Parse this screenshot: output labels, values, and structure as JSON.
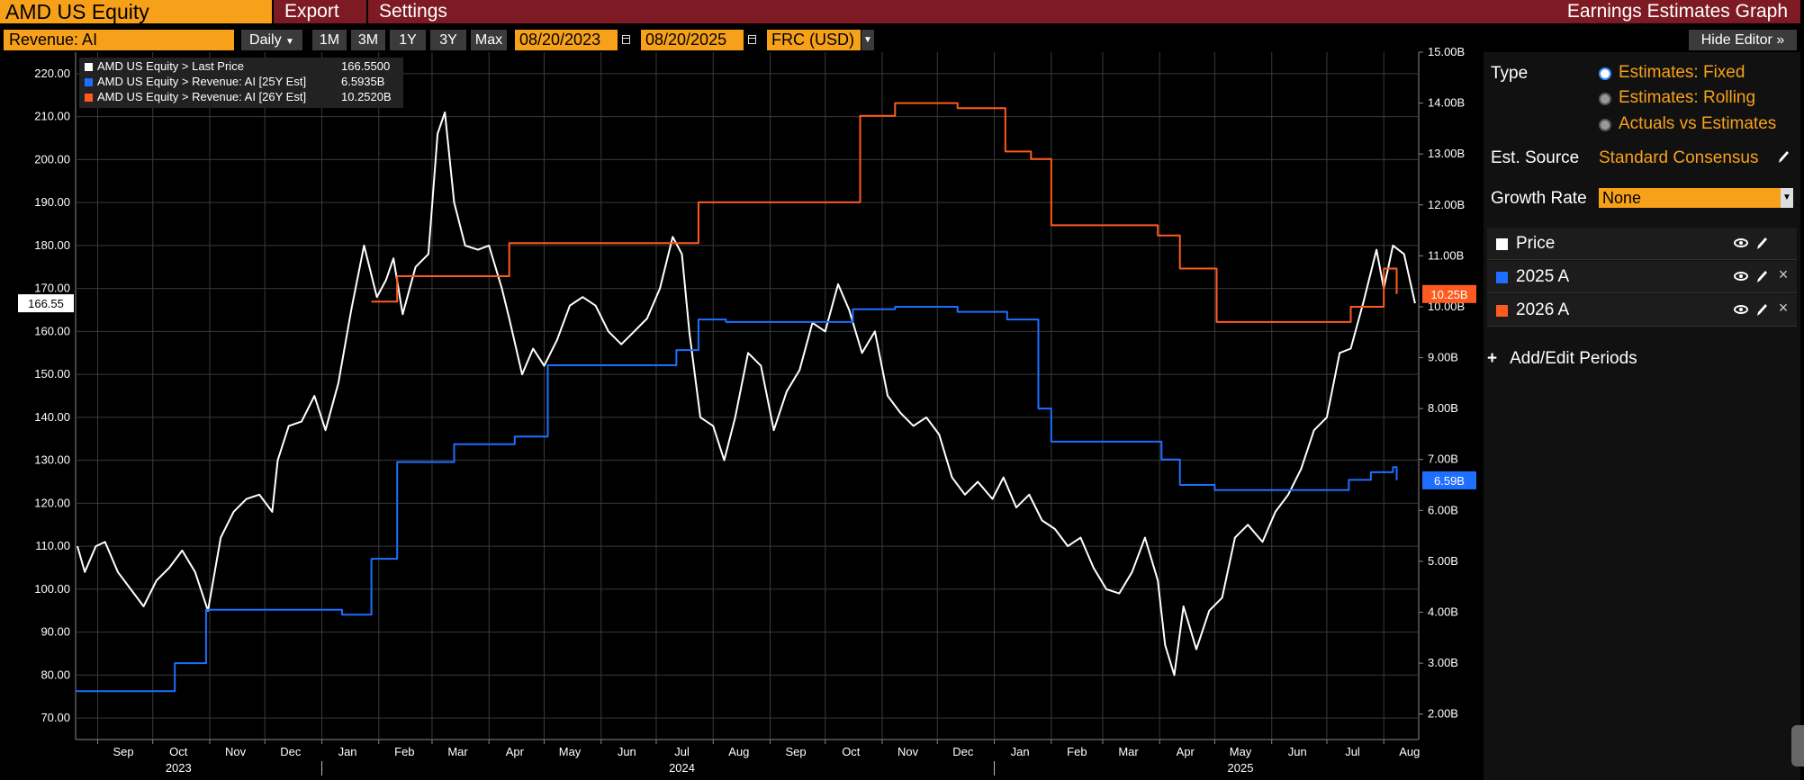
{
  "header": {
    "security": "AMD US Equity",
    "menu": [
      "Export",
      "Settings"
    ],
    "graph_title": "Earnings Estimates Graph"
  },
  "toolbar": {
    "field": "Revenue: AI",
    "frequency": "Daily",
    "ranges": [
      "1M",
      "3M",
      "1Y",
      "3Y",
      "Max"
    ],
    "start_date": "08/20/2023",
    "end_date": "08/20/2025",
    "currency": "FRC (USD)",
    "hide_editor": "Hide Editor"
  },
  "legend": [
    {
      "label": "AMD US Equity > Last Price",
      "value": "166.5500",
      "color": "#ffffff"
    },
    {
      "label": "AMD US Equity > Revenue: AI [25Y Est]",
      "value": "6.5935B",
      "color": "#1e6fff"
    },
    {
      "label": "AMD US Equity > Revenue: AI [26Y Est]",
      "value": "10.2520B",
      "color": "#ff5a1f"
    }
  ],
  "markers": {
    "price": "166.55",
    "est_2026": "10.25B",
    "est_2025": "6.59B"
  },
  "editor": {
    "type_label": "Type",
    "type_options": [
      {
        "label": "Estimates: Fixed",
        "selected": true
      },
      {
        "label": "Estimates: Rolling",
        "selected": false
      },
      {
        "label": "Actuals vs Estimates",
        "selected": false
      }
    ],
    "source_label": "Est. Source",
    "source_value": "Standard Consensus",
    "growth_label": "Growth Rate",
    "growth_value": "None",
    "series": [
      {
        "name": "Price",
        "color": "#ffffff"
      },
      {
        "name": "2025 A",
        "color": "#1e6fff"
      },
      {
        "name": "2026 A",
        "color": "#ff5a1f"
      }
    ],
    "add_periods": "Add/Edit Periods",
    "icons": [
      "eye-icon",
      "pencil-icon",
      "close-icon",
      "pencil-icon"
    ]
  },
  "chart_data": {
    "type": "line",
    "x_range": [
      "2023-08-20",
      "2025-08-20"
    ],
    "month_labels": [
      "Sep",
      "Oct",
      "Nov",
      "Dec",
      "Jan",
      "Feb",
      "Mar",
      "Apr",
      "May",
      "Jun",
      "Jul",
      "Aug",
      "Sep",
      "Oct",
      "Nov",
      "Dec",
      "Jan",
      "Feb",
      "Mar",
      "Apr",
      "May",
      "Jun",
      "Jul",
      "Aug"
    ],
    "year_labels": [
      "2023",
      "2024",
      "2025"
    ],
    "left_axis": {
      "ylim": [
        65,
        225
      ],
      "ticks": [
        "70.00",
        "80.00",
        "90.00",
        "100.00",
        "110.00",
        "120.00",
        "130.00",
        "140.00",
        "150.00",
        "160.00",
        "170.00",
        "180.00",
        "190.00",
        "200.00",
        "210.00",
        "220.00"
      ]
    },
    "right_axis": {
      "ylim": [
        1.5,
        15.0
      ],
      "ticks": [
        "2.00B",
        "3.00B",
        "4.00B",
        "5.00B",
        "6.00B",
        "7.00B",
        "8.00B",
        "9.00B",
        "10.00B",
        "11.00B",
        "12.00B",
        "13.00B",
        "14.00B",
        "15.00B"
      ]
    },
    "grid": true,
    "series": [
      {
        "name": "AMD US Equity > Last Price",
        "axis": "left",
        "color": "#ffffff",
        "points": [
          [
            "2023-08-21",
            110
          ],
          [
            "2023-08-25",
            104
          ],
          [
            "2023-08-31",
            110
          ],
          [
            "2023-09-05",
            111
          ],
          [
            "2023-09-12",
            104
          ],
          [
            "2023-09-19",
            100
          ],
          [
            "2023-09-26",
            96
          ],
          [
            "2023-10-03",
            102
          ],
          [
            "2023-10-10",
            105
          ],
          [
            "2023-10-17",
            109
          ],
          [
            "2023-10-24",
            104
          ],
          [
            "2023-10-31",
            95
          ],
          [
            "2023-11-07",
            112
          ],
          [
            "2023-11-14",
            118
          ],
          [
            "2023-11-21",
            121
          ],
          [
            "2023-11-28",
            122
          ],
          [
            "2023-12-05",
            118
          ],
          [
            "2023-12-08",
            130
          ],
          [
            "2023-12-14",
            138
          ],
          [
            "2023-12-21",
            139
          ],
          [
            "2023-12-28",
            145
          ],
          [
            "2024-01-03",
            137
          ],
          [
            "2024-01-10",
            148
          ],
          [
            "2024-01-17",
            165
          ],
          [
            "2024-01-24",
            180
          ],
          [
            "2024-01-31",
            168
          ],
          [
            "2024-02-05",
            172
          ],
          [
            "2024-02-09",
            177
          ],
          [
            "2024-02-14",
            164
          ],
          [
            "2024-02-21",
            175
          ],
          [
            "2024-02-28",
            178
          ],
          [
            "2024-03-04",
            206
          ],
          [
            "2024-03-08",
            211
          ],
          [
            "2024-03-13",
            190
          ],
          [
            "2024-03-19",
            180
          ],
          [
            "2024-03-26",
            179
          ],
          [
            "2024-04-01",
            180
          ],
          [
            "2024-04-08",
            170
          ],
          [
            "2024-04-12",
            163
          ],
          [
            "2024-04-19",
            150
          ],
          [
            "2024-04-25",
            156
          ],
          [
            "2024-05-01",
            152
          ],
          [
            "2024-05-08",
            158
          ],
          [
            "2024-05-15",
            166
          ],
          [
            "2024-05-22",
            168
          ],
          [
            "2024-05-29",
            166
          ],
          [
            "2024-06-05",
            160
          ],
          [
            "2024-06-12",
            157
          ],
          [
            "2024-06-19",
            160
          ],
          [
            "2024-06-26",
            163
          ],
          [
            "2024-07-03",
            170
          ],
          [
            "2024-07-10",
            182
          ],
          [
            "2024-07-15",
            178
          ],
          [
            "2024-07-19",
            160
          ],
          [
            "2024-07-25",
            140
          ],
          [
            "2024-08-01",
            138
          ],
          [
            "2024-08-07",
            130
          ],
          [
            "2024-08-13",
            140
          ],
          [
            "2024-08-20",
            155
          ],
          [
            "2024-08-27",
            152
          ],
          [
            "2024-09-03",
            137
          ],
          [
            "2024-09-10",
            146
          ],
          [
            "2024-09-17",
            151
          ],
          [
            "2024-09-24",
            162
          ],
          [
            "2024-10-01",
            160
          ],
          [
            "2024-10-08",
            171
          ],
          [
            "2024-10-14",
            165
          ],
          [
            "2024-10-21",
            155
          ],
          [
            "2024-10-28",
            160
          ],
          [
            "2024-11-04",
            145
          ],
          [
            "2024-11-11",
            141
          ],
          [
            "2024-11-18",
            138
          ],
          [
            "2024-11-25",
            140
          ],
          [
            "2024-12-02",
            136
          ],
          [
            "2024-12-09",
            126
          ],
          [
            "2024-12-16",
            122
          ],
          [
            "2024-12-23",
            125
          ],
          [
            "2024-12-31",
            121
          ],
          [
            "2025-01-06",
            126
          ],
          [
            "2025-01-13",
            119
          ],
          [
            "2025-01-20",
            122
          ],
          [
            "2025-01-27",
            116
          ],
          [
            "2025-02-03",
            114
          ],
          [
            "2025-02-10",
            110
          ],
          [
            "2025-02-17",
            112
          ],
          [
            "2025-02-24",
            105
          ],
          [
            "2025-03-03",
            100
          ],
          [
            "2025-03-10",
            99
          ],
          [
            "2025-03-17",
            104
          ],
          [
            "2025-03-24",
            112
          ],
          [
            "2025-03-31",
            102
          ],
          [
            "2025-04-04",
            87
          ],
          [
            "2025-04-09",
            80
          ],
          [
            "2025-04-14",
            96
          ],
          [
            "2025-04-21",
            86
          ],
          [
            "2025-04-28",
            95
          ],
          [
            "2025-05-05",
            98
          ],
          [
            "2025-05-12",
            112
          ],
          [
            "2025-05-19",
            115
          ],
          [
            "2025-05-27",
            111
          ],
          [
            "2025-06-03",
            118
          ],
          [
            "2025-06-10",
            122
          ],
          [
            "2025-06-17",
            128
          ],
          [
            "2025-06-24",
            137
          ],
          [
            "2025-07-01",
            140
          ],
          [
            "2025-07-08",
            155
          ],
          [
            "2025-07-14",
            156
          ],
          [
            "2025-07-21",
            167
          ],
          [
            "2025-07-28",
            179
          ],
          [
            "2025-08-01",
            170
          ],
          [
            "2025-08-06",
            180
          ],
          [
            "2025-08-12",
            178
          ],
          [
            "2025-08-18",
            166.55
          ]
        ]
      },
      {
        "name": "AMD US Equity > Revenue: AI [25Y Est]",
        "axis": "right",
        "color": "#1e6fff",
        "points": [
          [
            "2023-08-20",
            2.45
          ],
          [
            "2023-10-13",
            3.0
          ],
          [
            "2023-10-30",
            4.05
          ],
          [
            "2024-01-12",
            3.95
          ],
          [
            "2024-01-28",
            5.05
          ],
          [
            "2024-02-11",
            6.95
          ],
          [
            "2024-03-13",
            7.3
          ],
          [
            "2024-04-15",
            7.45
          ],
          [
            "2024-05-03",
            8.85
          ],
          [
            "2024-07-12",
            9.15
          ],
          [
            "2024-07-24",
            9.75
          ],
          [
            "2024-08-08",
            9.7
          ],
          [
            "2024-10-16",
            9.95
          ],
          [
            "2024-11-08",
            10.0
          ],
          [
            "2024-12-12",
            9.9
          ],
          [
            "2025-01-08",
            9.75
          ],
          [
            "2025-01-25",
            8.0
          ],
          [
            "2025-02-01",
            7.35
          ],
          [
            "2025-04-02",
            7.0
          ],
          [
            "2025-04-12",
            6.5
          ],
          [
            "2025-05-01",
            6.4
          ],
          [
            "2025-07-13",
            6.6
          ],
          [
            "2025-07-25",
            6.75
          ],
          [
            "2025-08-06",
            6.85
          ],
          [
            "2025-08-08",
            6.59
          ]
        ]
      },
      {
        "name": "AMD US Equity > Revenue: AI [26Y Est]",
        "axis": "right",
        "color": "#ff5a1f",
        "points": [
          [
            "2024-01-28",
            10.1
          ],
          [
            "2024-02-11",
            10.6
          ],
          [
            "2024-04-12",
            11.25
          ],
          [
            "2024-07-24",
            12.05
          ],
          [
            "2024-10-20",
            13.75
          ],
          [
            "2024-11-08",
            14.0
          ],
          [
            "2024-12-12",
            13.9
          ],
          [
            "2025-01-07",
            13.05
          ],
          [
            "2025-01-21",
            12.9
          ],
          [
            "2025-02-01",
            11.6
          ],
          [
            "2025-03-31",
            11.4
          ],
          [
            "2025-04-12",
            10.75
          ],
          [
            "2025-05-02",
            9.7
          ],
          [
            "2025-07-14",
            10.0
          ],
          [
            "2025-08-01",
            10.75
          ],
          [
            "2025-08-08",
            10.25
          ]
        ]
      }
    ]
  }
}
